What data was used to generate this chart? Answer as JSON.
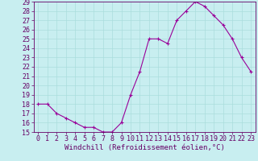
{
  "x": [
    0,
    1,
    2,
    3,
    4,
    5,
    6,
    7,
    8,
    9,
    10,
    11,
    12,
    13,
    14,
    15,
    16,
    17,
    18,
    19,
    20,
    21,
    22,
    23
  ],
  "y": [
    18,
    18,
    17,
    16.5,
    16,
    15.5,
    15.5,
    15,
    15,
    16,
    19,
    21.5,
    25,
    25,
    24.5,
    27,
    28,
    29,
    28.5,
    27.5,
    26.5,
    25,
    23,
    21.5
  ],
  "line_color": "#990099",
  "marker": "+",
  "background_color": "#c8eef0",
  "grid_color": "#aadddd",
  "xlabel": "Windchill (Refroidissement éolien,°C)",
  "ylabel": "",
  "ylim": [
    15,
    29
  ],
  "xlim": [
    -0.5,
    23.5
  ],
  "yticks": [
    15,
    16,
    17,
    18,
    19,
    20,
    21,
    22,
    23,
    24,
    25,
    26,
    27,
    28,
    29
  ],
  "xticks": [
    0,
    1,
    2,
    3,
    4,
    5,
    6,
    7,
    8,
    9,
    10,
    11,
    12,
    13,
    14,
    15,
    16,
    17,
    18,
    19,
    20,
    21,
    22,
    23
  ],
  "tick_color": "#660066",
  "axis_color": "#660066",
  "label_fontsize": 6.5,
  "tick_fontsize": 6,
  "linewidth": 0.8,
  "markersize": 3,
  "markeredgewidth": 0.8
}
